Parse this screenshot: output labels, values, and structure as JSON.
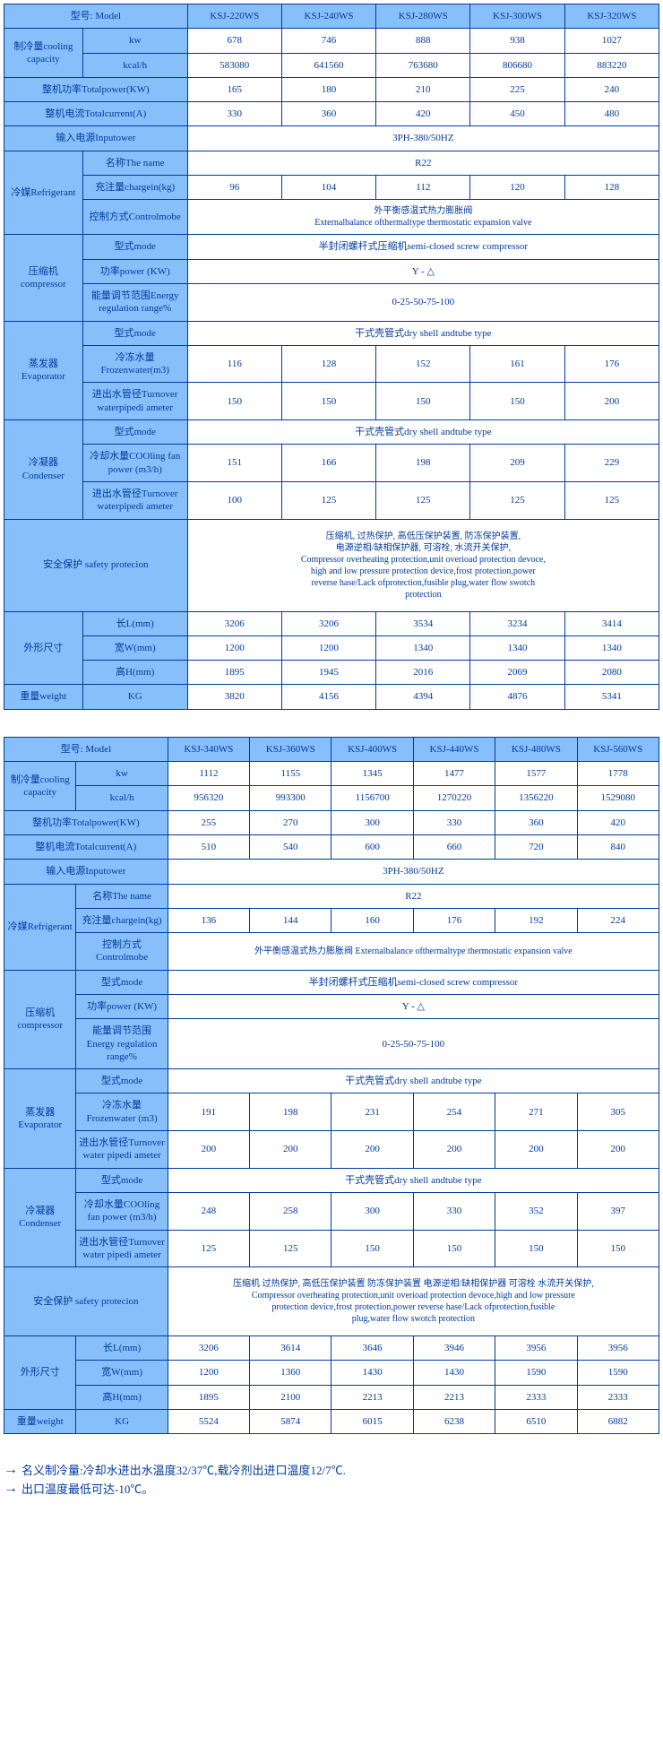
{
  "colors": {
    "border": "#003a9c",
    "text": "#003a9c",
    "header_bg": "#87bffb",
    "data_bg": "#ffffff"
  },
  "table1": {
    "models": [
      "KSJ-220WS",
      "KSJ-240WS",
      "KSJ-280WS",
      "KSJ-300WS",
      "KSJ-320WS"
    ],
    "rows": {
      "model_label": "型号: Model",
      "cooling_label": "制冷量cooling capacity",
      "kw_label": "kw",
      "kw": [
        "678",
        "746",
        "888",
        "938",
        "1027"
      ],
      "kcal_label": "kcal/h",
      "kcal": [
        "583080",
        "641560",
        "763680",
        "806680",
        "883220"
      ],
      "totalpower_label": "整机功率Totalpower(KW)",
      "totalpower": [
        "165",
        "180",
        "210",
        "225",
        "240"
      ],
      "totalcurrent_label": "整机电流Totalcurrent(A)",
      "totalcurrent": [
        "330",
        "360",
        "420",
        "450",
        "480"
      ],
      "inputpower_label": "输入电源Inputower",
      "inputpower_val": "3PH-380/50HZ",
      "refrigerant_label": "冷媒Refrigerant",
      "name_label": "名称The name",
      "name_val": "R22",
      "chargein_label": "充注量chargein(kg)",
      "chargein": [
        "96",
        "104",
        "112",
        "120",
        "128"
      ],
      "controlmode_label": "控制方式Controlmobe",
      "controlmode_val": "外平衡感温式热力膨胀阀\nExternalbalance ofthermaltype thermostatic expansion valve",
      "compressor_label": "压缩机compressor",
      "comp_mode_label": "型式mode",
      "comp_mode_val": "半封闭螺杆式压缩机semi-closed screw compressor",
      "comp_power_label": "功率power (KW)",
      "comp_power_val": "Y - △",
      "comp_reg_label": "能量调节范围Energy regulation range%",
      "comp_reg_val": "0-25-50-75-100",
      "evaporator_label": "蒸发器\nEvaporator",
      "evap_mode_label": "型式mode",
      "evap_mode_val": "干式壳管式dry shell andtube type",
      "evap_frozen_label": "冷冻水量Frozenwater(m3)",
      "evap_frozen": [
        "116",
        "128",
        "152",
        "161",
        "176"
      ],
      "evap_turn_label": "进出水管径Turnover waterpipedi ameter",
      "evap_turn": [
        "150",
        "150",
        "150",
        "150",
        "200"
      ],
      "condenser_label": "冷凝器\nCondenser",
      "cond_mode_label": "型式mode",
      "cond_mode_val": "干式壳管式dry shell andtube type",
      "cond_fan_label": "冷却水量COOling fan power (m3/h)",
      "cond_fan": [
        "151",
        "166",
        "198",
        "209",
        "229"
      ],
      "cond_turn_label": "进出水管径Turnover waterpipedi ameter",
      "cond_turn": [
        "100",
        "125",
        "125",
        "125",
        "125"
      ],
      "safety_label": "安全保护 safety protecion",
      "safety_val": "压缩机, 过热保护, 高低压保护装置, 防冻保护装置,\n电源逆相/缺相保护器, 可溶栓, 水流开关保护,\nCompressor overheating protection,unit overioad protection devoce,\nhigh and low pressure protection device,frost protection,power\nreverse hase/Lack ofprotection,fusible plug,water flow swotch\nprotection",
      "dim_label": "外形尺寸",
      "len_label": "长L(mm)",
      "len": [
        "3206",
        "3206",
        "3534",
        "3234",
        "3414"
      ],
      "wid_label": "宽W(mm)",
      "wid": [
        "1200",
        "1200",
        "1340",
        "1340",
        "1340"
      ],
      "hei_label": "高H(mm)",
      "hei": [
        "1895",
        "1945",
        "2016",
        "2069",
        "2080"
      ],
      "weight_label": "重量weight",
      "kg_label": "KG",
      "weight": [
        "3820",
        "4156",
        "4394",
        "4876",
        "5341"
      ]
    }
  },
  "table2": {
    "models": [
      "KSJ-340WS",
      "KSJ-360WS",
      "KSJ-400WS",
      "KSJ-440WS",
      "KSJ-480WS",
      "KSJ-560WS"
    ],
    "rows": {
      "model_label": "型号: Model",
      "cooling_label": "制冷量cooling capacity",
      "kw_label": "kw",
      "kw": [
        "1112",
        "1155",
        "1345",
        "1477",
        "1577",
        "1778"
      ],
      "kcal_label": "kcal/h",
      "kcal": [
        "956320",
        "993300",
        "1156700",
        "1270220",
        "1356220",
        "1529080"
      ],
      "totalpower_label": "整机功率Totalpower(KW)",
      "totalpower": [
        "255",
        "270",
        "300",
        "330",
        "360",
        "420"
      ],
      "totalcurrent_label": "整机电流Totalcurrent(A)",
      "totalcurrent": [
        "510",
        "540",
        "600",
        "660",
        "720",
        "840"
      ],
      "inputpower_label": "输入电源Inputower",
      "inputpower_val": "3PH-380/50HZ",
      "refrigerant_label": "冷媒Refrigerant",
      "name_label": "名称The name",
      "name_val": "R22",
      "chargein_label": "充注量chargein(kg)",
      "chargein": [
        "136",
        "144",
        "160",
        "176",
        "192",
        "224"
      ],
      "controlmode_label": "控制方式Controlmobe",
      "controlmode_val": "外平衡感温式热力膨胀阀 Externalbalance ofthermaltype thermostatic expansion valve",
      "compressor_label": "压缩机compressor",
      "comp_mode_label": "型式mode",
      "comp_mode_val": "半封闭螺杆式压缩机semi-closed screw compressor",
      "comp_power_label": "功率power (KW)",
      "comp_power_val": "Y - △",
      "comp_reg_label": "能量调节范围Energy regulation range%",
      "comp_reg_val": "0-25-50-75-100",
      "evaporator_label": "蒸发器\nEvaporator",
      "evap_mode_label": "型式mode",
      "evap_mode_val": "干式壳管式dry shell andtube type",
      "evap_frozen_label": "冷冻水量Frozenwater (m3)",
      "evap_frozen": [
        "191",
        "198",
        "231",
        "254",
        "271",
        "305"
      ],
      "evap_turn_label": "进出水管径Turnover water pipedi ameter",
      "evap_turn": [
        "200",
        "200",
        "200",
        "200",
        "200",
        "200"
      ],
      "condenser_label": "冷凝器\nCondenser",
      "cond_mode_label": "型式mode",
      "cond_mode_val": "干式壳管式dry shell andtube type",
      "cond_fan_label": "冷却水量COOling fan power (m3/h)",
      "cond_fan": [
        "248",
        "258",
        "300",
        "330",
        "352",
        "397"
      ],
      "cond_turn_label": "进出水管径Turnover water pipedi ameter",
      "cond_turn": [
        "125",
        "125",
        "150",
        "150",
        "150",
        "150"
      ],
      "safety_label": "安全保护 safety protecion",
      "safety_val": "压缩机 过热保护, 高低压保护装置 防冻保护装置 电源逆相/缺相保护器 可溶栓 水流开关保护,\nCompressor overheating protection,unit overioad protection devoce,high and low pressure\nprotection device,frost protection,power reverse hase/Lack ofprotection,fusible\nplug,water flow swotch protection",
      "dim_label": "外形尺寸",
      "len_label": "长L(mm)",
      "len": [
        "3206",
        "3614",
        "3646",
        "3946",
        "3956",
        "3956"
      ],
      "wid_label": "宽W(mm)",
      "wid": [
        "1200",
        "1360",
        "1430",
        "1430",
        "1590",
        "1590"
      ],
      "hei_label": "高H(mm)",
      "hei": [
        "1895",
        "2100",
        "2213",
        "2213",
        "2333",
        "2333"
      ],
      "weight_label": "重量weight",
      "kg_label": "KG",
      "weight": [
        "5524",
        "5874",
        "6015",
        "6238",
        "6510",
        "6882"
      ]
    }
  },
  "footer": {
    "line1": "名义制冷量:冷却水进出水温度32/37℃,载冷剂出进口温度12/7℃.",
    "line2": "出口温度最低可达-10℃。"
  }
}
